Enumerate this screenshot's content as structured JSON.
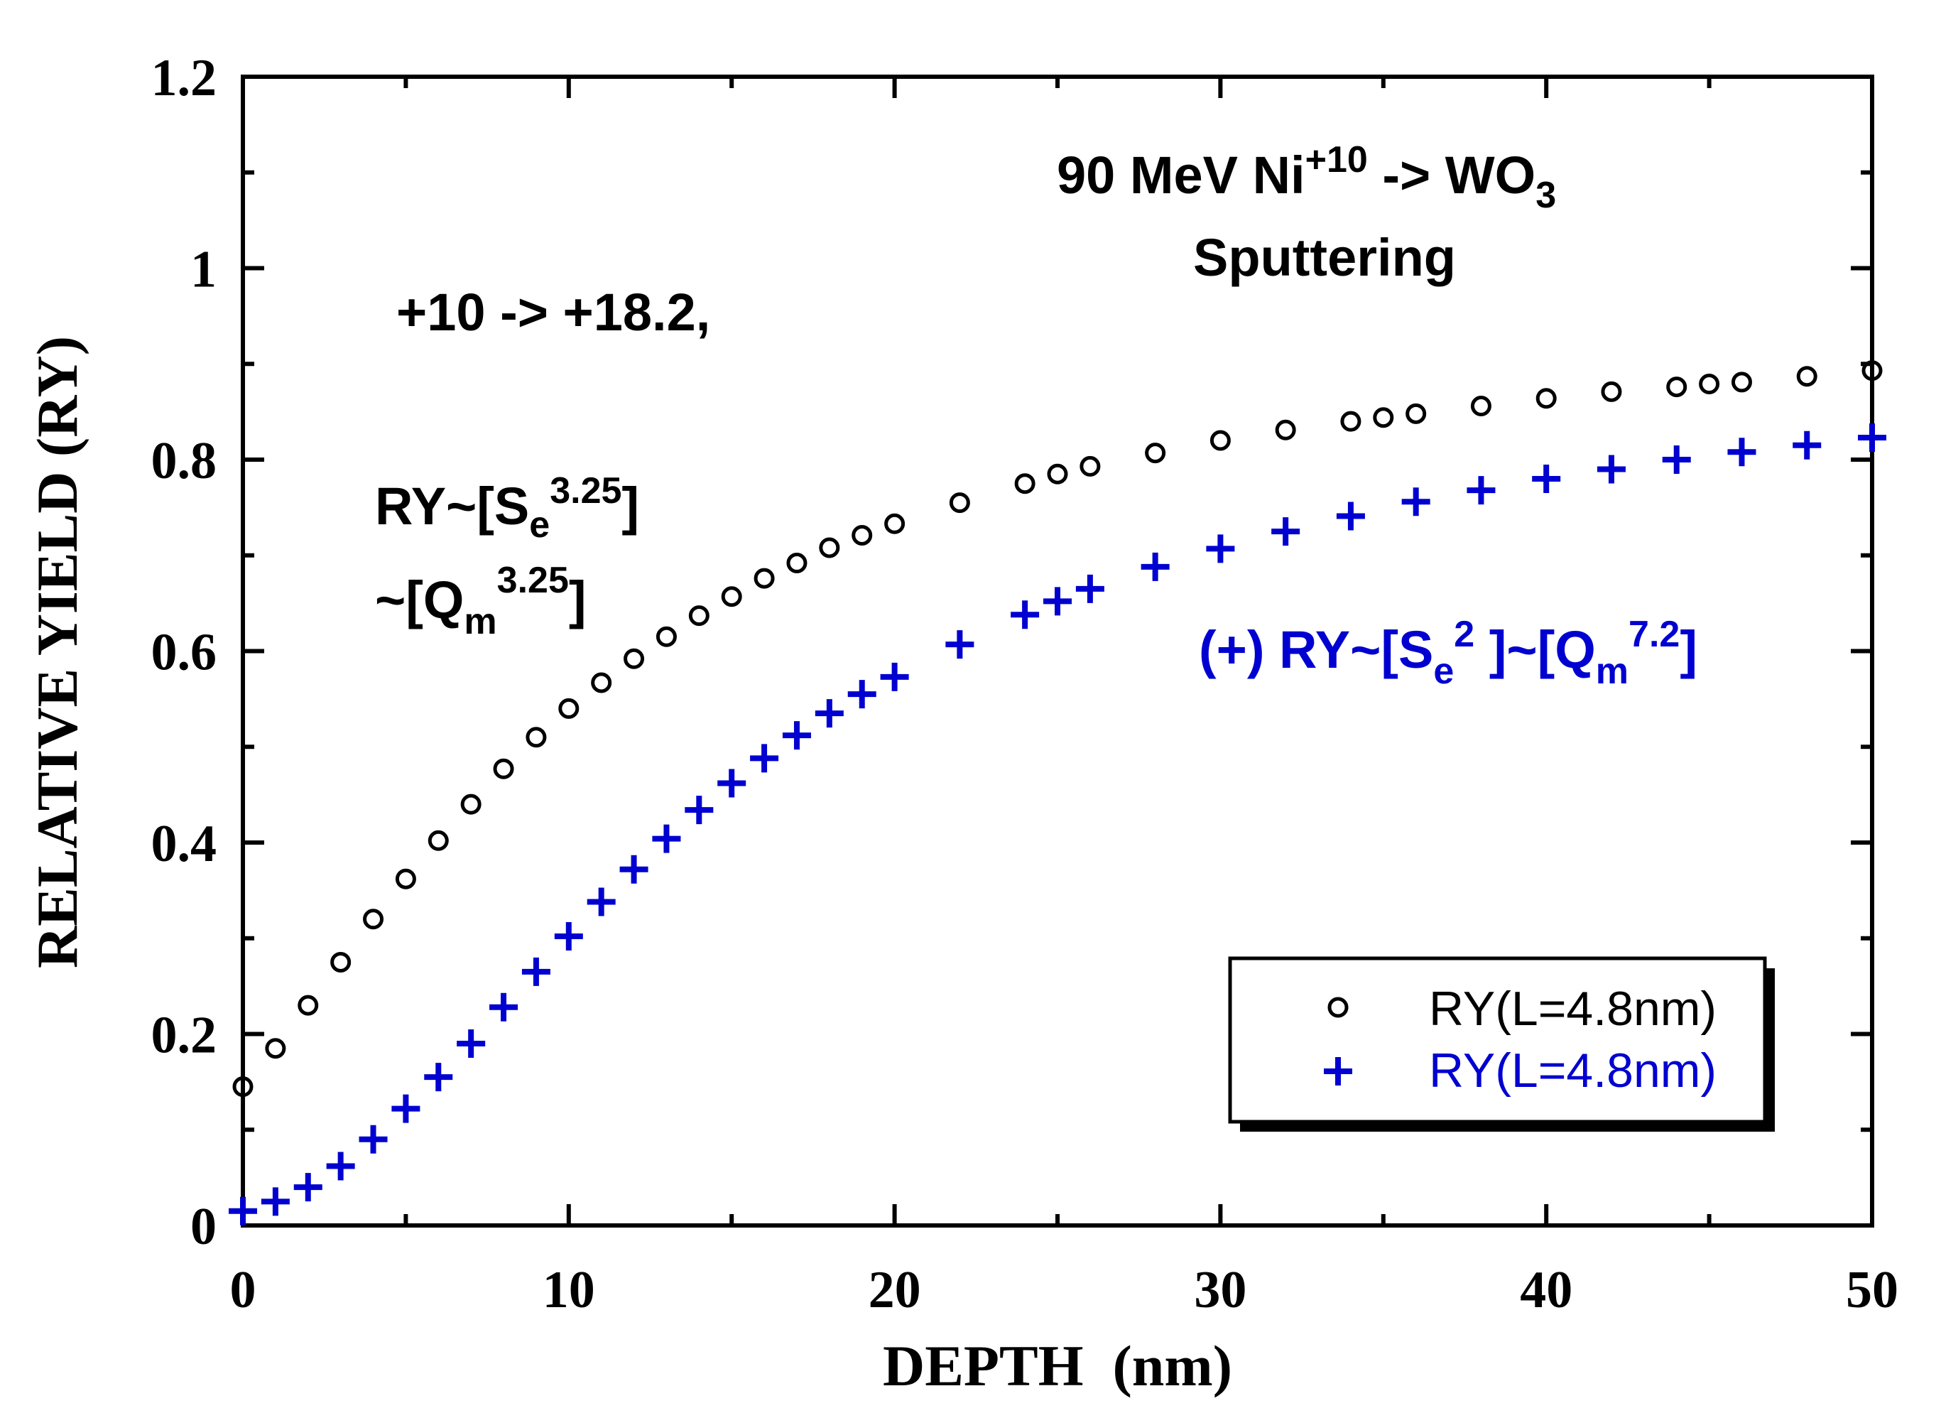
{
  "chart_data": {
    "type": "scatter",
    "xlabel": "DEPTH  (nm)",
    "ylabel": "RELATIVE YIELD (RY)",
    "xlim": [
      0,
      50
    ],
    "ylim": [
      0,
      1.2
    ],
    "x_ticks": [
      "0",
      "10",
      "20",
      "30",
      "40",
      "50"
    ],
    "y_ticks": [
      "0",
      "0.2",
      "0.4",
      "0.6",
      "0.8",
      "1",
      "1.2"
    ],
    "grid": false,
    "legend_position": "bottom-right",
    "series": [
      {
        "name": "RY(L=4.8nm)",
        "marker": "circle",
        "color": "#000000",
        "x": [
          0,
          1,
          2,
          3,
          4,
          5,
          6,
          7,
          8,
          9,
          10,
          11,
          12,
          13,
          14,
          15,
          16,
          17,
          18,
          19,
          20,
          22,
          24,
          25,
          26,
          28,
          30,
          32,
          34,
          35,
          36,
          38,
          40,
          42,
          44,
          45,
          46,
          48,
          50
        ],
        "y": [
          0.145,
          0.185,
          0.23,
          0.275,
          0.32,
          0.362,
          0.402,
          0.44,
          0.477,
          0.51,
          0.54,
          0.567,
          0.592,
          0.615,
          0.637,
          0.657,
          0.676,
          0.692,
          0.708,
          0.721,
          0.733,
          0.755,
          0.775,
          0.785,
          0.793,
          0.807,
          0.82,
          0.831,
          0.84,
          0.844,
          0.848,
          0.856,
          0.864,
          0.871,
          0.876,
          0.879,
          0.881,
          0.887,
          0.893
        ]
      },
      {
        "name": "RY(L=4.8nm)",
        "marker": "plus",
        "color": "#0000d0",
        "x": [
          0,
          1,
          2,
          3,
          4,
          5,
          6,
          7,
          8,
          9,
          10,
          11,
          12,
          13,
          14,
          15,
          16,
          17,
          18,
          19,
          20,
          22,
          24,
          25,
          26,
          28,
          30,
          32,
          34,
          36,
          38,
          40,
          42,
          44,
          46,
          48,
          50
        ],
        "y": [
          0.015,
          0.025,
          0.04,
          0.062,
          0.09,
          0.122,
          0.155,
          0.19,
          0.228,
          0.265,
          0.302,
          0.338,
          0.372,
          0.404,
          0.434,
          0.462,
          0.488,
          0.512,
          0.535,
          0.555,
          0.573,
          0.607,
          0.638,
          0.652,
          0.665,
          0.688,
          0.707,
          0.725,
          0.741,
          0.756,
          0.768,
          0.78,
          0.79,
          0.8,
          0.808,
          0.815,
          0.823
        ]
      }
    ],
    "legend": [
      "RY(L=4.8nm)",
      "RY(L=4.8nm)"
    ],
    "annotations": {
      "title_line1_main": "90 MeV Ni",
      "title_line1_sup": "+10",
      "title_line1_mid": " -> WO",
      "title_line1_sub": "3",
      "title_line2": "Sputtering",
      "charge": "+10 -> +18.2,",
      "eq1_a": "RY~[S",
      "eq1_sub": "e",
      "eq1_sup": "3.25",
      "eq1_end": "]",
      "eq2_a": "~[Q",
      "eq2_sub": "m",
      "eq2_sup": "3.25",
      "eq2_end": "]",
      "eq3_a": "(+) RY~[S",
      "eq3_sub": "e",
      "eq3_sup": "2",
      "eq3_mid": " ]~[Q",
      "eq3_sub2": "m",
      "eq3_sup2": "7.2",
      "eq3_end": "]"
    }
  }
}
